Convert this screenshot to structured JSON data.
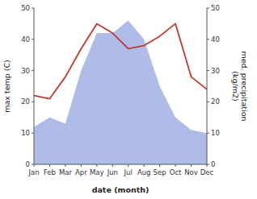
{
  "chart_data": {
    "type": "line",
    "categories": [
      "Jan",
      "Feb",
      "Mar",
      "Apr",
      "May",
      "Jun",
      "Jul",
      "Aug",
      "Sep",
      "Oct",
      "Nov",
      "Dec"
    ],
    "xlabel": "date (month)",
    "ylabel": "max temp (C)",
    "y2label": "med. precipitation\n(kg/m2)",
    "ylim": [
      0,
      50
    ],
    "yticks": [
      0,
      10,
      20,
      30,
      40,
      50
    ],
    "y2lim": [
      0,
      50
    ],
    "y2ticks": [
      0,
      10,
      20,
      30,
      40,
      50
    ],
    "series": [
      {
        "type": "area",
        "axis": "y2",
        "color": "#b0bce8",
        "values": [
          12,
          15,
          13,
          30,
          42,
          42,
          46,
          40,
          25,
          15,
          11,
          10
        ]
      },
      {
        "type": "line",
        "color": "#c0392b",
        "values": [
          22,
          21,
          28,
          37,
          45,
          42,
          37,
          38,
          41,
          45,
          28,
          24
        ]
      }
    ]
  }
}
